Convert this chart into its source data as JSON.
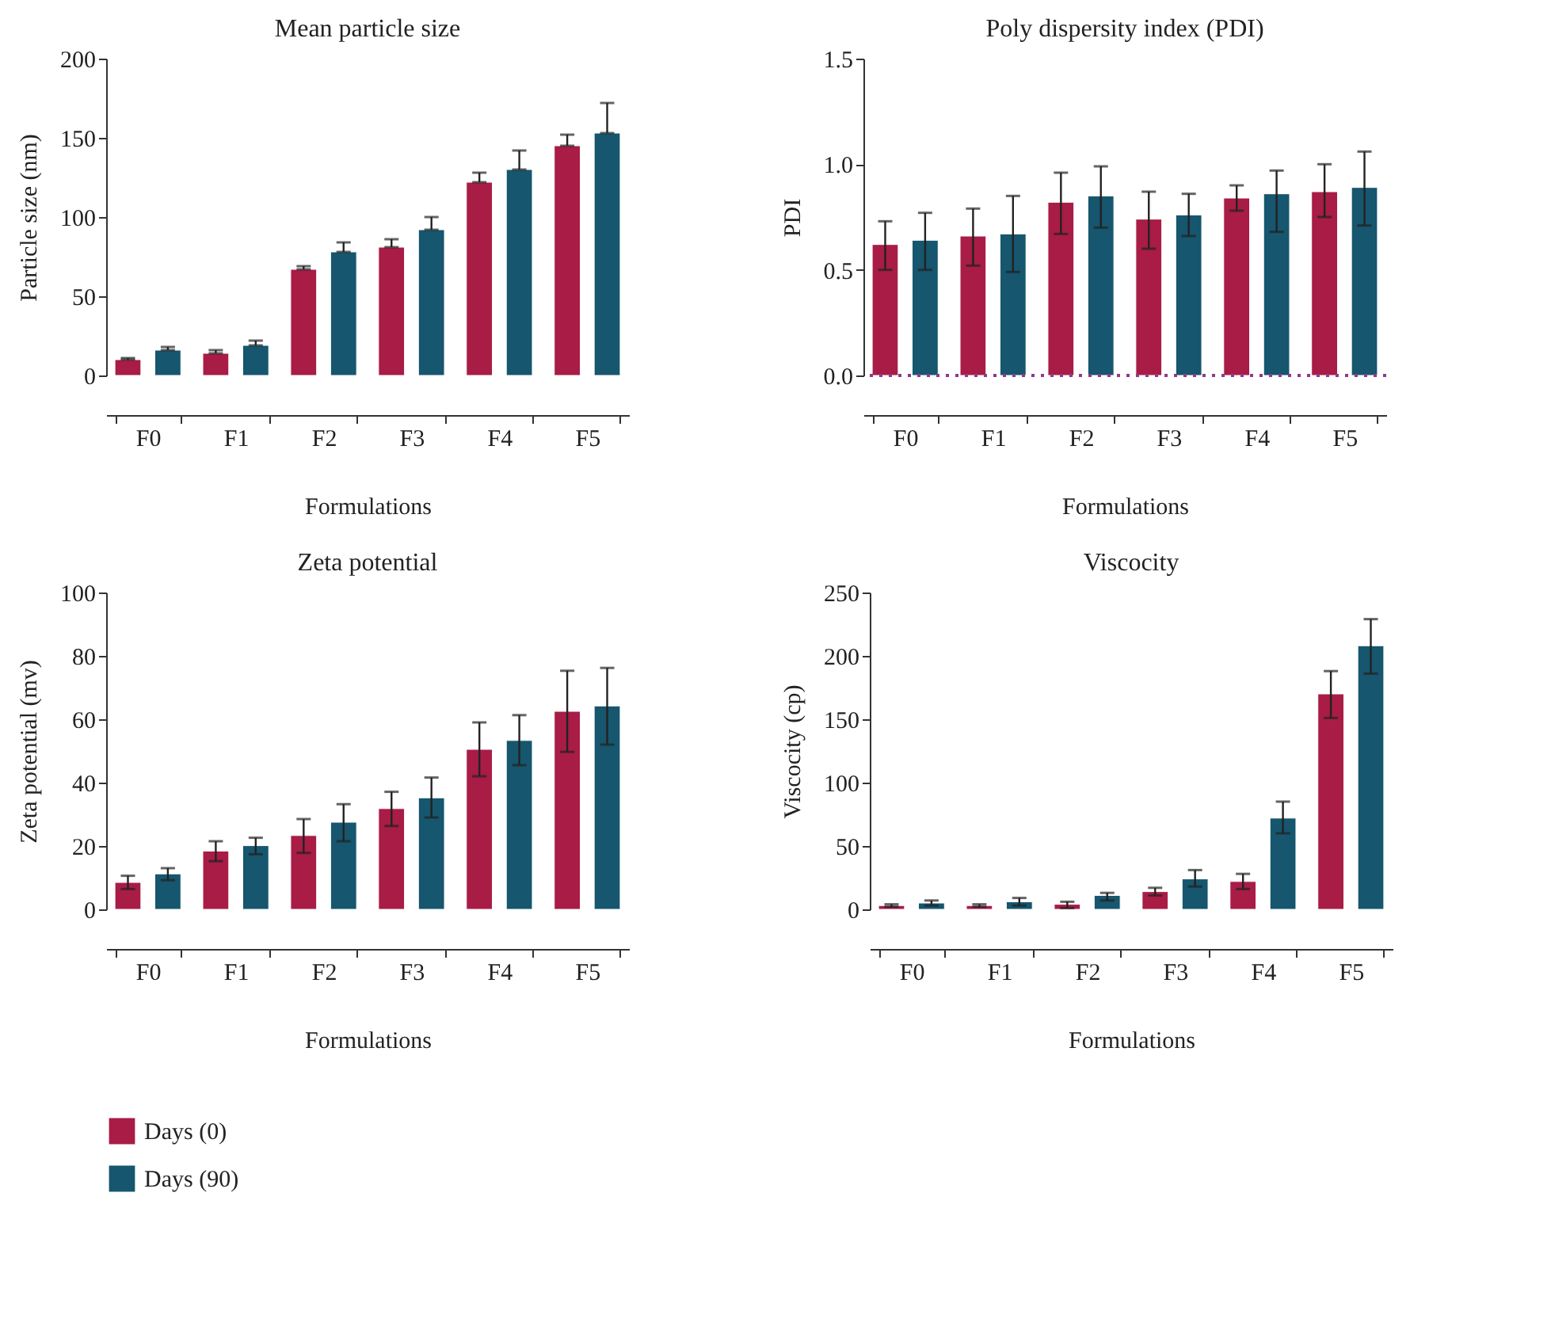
{
  "chart_data": [
    {
      "type": "bar",
      "title": "Mean particle size",
      "xlabel": "Formulations",
      "ylabel": "Particle size (nm)",
      "categories": [
        "F0",
        "F1",
        "F2",
        "F3",
        "F4",
        "F5"
      ],
      "ylim": [
        0,
        200
      ],
      "yticks": [
        0,
        50,
        100,
        150,
        200
      ],
      "grid": false,
      "legend": false,
      "series": [
        {
          "color": "#a81c46",
          "values": [
            10,
            14,
            67,
            81,
            122,
            145
          ],
          "errors": [
            [
              10,
              11
            ],
            [
              14,
              16
            ],
            [
              67,
              69
            ],
            [
              81,
              86
            ],
            [
              122,
              128
            ],
            [
              145,
              152
            ]
          ]
        },
        {
          "color": "#16566e",
          "values": [
            16,
            19,
            78,
            92,
            130,
            153
          ],
          "errors": [
            [
              16,
              18
            ],
            [
              19,
              22
            ],
            [
              78,
              84
            ],
            [
              92,
              100
            ],
            [
              130,
              142
            ],
            [
              153,
              172
            ]
          ]
        }
      ]
    },
    {
      "type": "bar",
      "title": "Poly dispersity index (PDI)",
      "xlabel": "Formulations",
      "ylabel": "PDI",
      "categories": [
        "F0",
        "F1",
        "F2",
        "F3",
        "F4",
        "F5"
      ],
      "ylim": [
        0,
        1.5
      ],
      "yticks": [
        {
          "value": 0,
          "label": "0.0"
        },
        0.5,
        {
          "value": 1,
          "label": "1.0"
        },
        1.5
      ],
      "grid": false,
      "legend": false,
      "ref_lines": [
        {
          "axis": "y",
          "value": 0,
          "color": "#8e3a8e",
          "line_style": "dotted"
        }
      ],
      "series": [
        {
          "color": "#a81c46",
          "values": [
            0.62,
            0.66,
            0.82,
            0.74,
            0.84,
            0.87
          ],
          "errors": [
            [
              0.5,
              0.73
            ],
            [
              0.52,
              0.79
            ],
            [
              0.67,
              0.96
            ],
            [
              0.6,
              0.87
            ],
            [
              0.78,
              0.9
            ],
            [
              0.75,
              1
            ]
          ]
        },
        {
          "color": "#16566e",
          "values": [
            0.64,
            0.67,
            0.85,
            0.76,
            0.86,
            0.89
          ],
          "errors": [
            [
              0.5,
              0.77
            ],
            [
              0.49,
              0.85
            ],
            [
              0.7,
              0.99
            ],
            [
              0.66,
              0.86
            ],
            [
              0.68,
              0.97
            ],
            [
              0.71,
              1.06
            ]
          ]
        }
      ]
    },
    {
      "type": "bar",
      "title": "Zeta potential",
      "xlabel": "Formulations",
      "ylabel": "Zeta potential (mv)",
      "categories": [
        "F0",
        "F1",
        "F2",
        "F3",
        "F4",
        "F5"
      ],
      "ylim": [
        0,
        100
      ],
      "yticks": [
        0,
        20,
        40,
        60,
        80,
        100
      ],
      "grid": false,
      "legend": "bottom",
      "series": [
        {
          "name": "Days (0)",
          "color": "#a81c46",
          "values": [
            8.5,
            18.4,
            23.3,
            31.8,
            50.5,
            62.5
          ],
          "errors": [
            [
              6.4,
              10.6
            ],
            [
              15.2,
              21.5
            ],
            [
              17.8,
              28.5
            ],
            [
              26.3,
              37.1
            ],
            [
              42,
              59
            ],
            [
              49.7,
              75.3
            ]
          ]
        },
        {
          "name": "Days (90)",
          "color": "#16566e",
          "values": [
            11.2,
            20.1,
            27.5,
            35.2,
            53.3,
            64.2
          ],
          "errors": [
            [
              9.2,
              13
            ],
            [
              17.4,
              22.6
            ],
            [
              21.5,
              33.2
            ],
            [
              29,
              41.6
            ],
            [
              45.5,
              61.3
            ],
            [
              52,
              76.2
            ]
          ]
        }
      ]
    },
    {
      "type": "bar",
      "title": "Viscocity",
      "xlabel": "Formulations",
      "ylabel": "Viscocity (cp)",
      "categories": [
        "F0",
        "F1",
        "F2",
        "F3",
        "F4",
        "F5"
      ],
      "ylim": [
        0,
        250
      ],
      "yticks": [
        0,
        50,
        100,
        150,
        200,
        250
      ],
      "grid": false,
      "legend": false,
      "series": [
        {
          "color": "#a81c46",
          "values": [
            3,
            3,
            4,
            14,
            22,
            170
          ],
          "errors": [
            [
              2,
              4
            ],
            [
              2,
              4
            ],
            [
              1,
              6
            ],
            [
              11,
              17
            ],
            [
              16,
              28
            ],
            [
              151,
              188
            ]
          ]
        },
        {
          "color": "#16566e",
          "values": [
            5,
            6,
            11,
            24,
            72,
            208
          ],
          "errors": [
            [
              3,
              7
            ],
            [
              3,
              9
            ],
            [
              7,
              13
            ],
            [
              18,
              31
            ],
            [
              60,
              85
            ],
            [
              186,
              229
            ]
          ]
        }
      ]
    }
  ]
}
